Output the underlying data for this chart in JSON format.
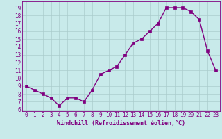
{
  "x": [
    0,
    1,
    2,
    3,
    4,
    5,
    6,
    7,
    8,
    9,
    10,
    11,
    12,
    13,
    14,
    15,
    16,
    17,
    18,
    19,
    20,
    21,
    22,
    23
  ],
  "y": [
    9,
    8.5,
    8,
    7.5,
    6.5,
    7.5,
    7.5,
    7,
    8.5,
    10.5,
    11,
    11.5,
    13,
    14.5,
    15,
    16,
    17,
    19,
    19,
    19,
    18.5,
    17.5,
    13.5,
    11
  ],
  "line_color": "#800080",
  "marker_color": "#800080",
  "bg_color": "#c8eaea",
  "grid_color": "#aacccc",
  "xlabel": "Windchill (Refroidissement éolien,°C)",
  "xlim": [
    -0.5,
    23.5
  ],
  "ylim": [
    5.8,
    19.8
  ],
  "yticks": [
    6,
    7,
    8,
    9,
    10,
    11,
    12,
    13,
    14,
    15,
    16,
    17,
    18,
    19
  ],
  "xticks": [
    0,
    1,
    2,
    3,
    4,
    5,
    6,
    7,
    8,
    9,
    10,
    11,
    12,
    13,
    14,
    15,
    16,
    17,
    18,
    19,
    20,
    21,
    22,
    23
  ],
  "font_color": "#800080",
  "tick_fontsize": 5.5,
  "xlabel_fontsize": 6.0,
  "linewidth": 1.0,
  "markersize": 2.2
}
